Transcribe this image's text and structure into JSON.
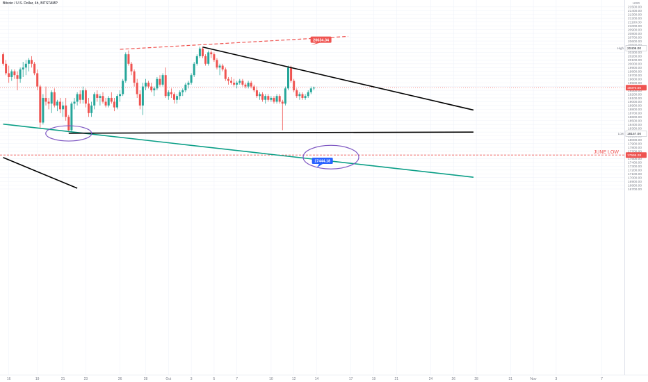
{
  "header": {
    "symbol_title": "Bitcoin / U.S. Dollar, 4h, BITSTAMP",
    "currency": "USD"
  },
  "colors": {
    "up": "#26a69a",
    "down": "#ef5350",
    "price_line": "#ef5350",
    "channel_line": "#0a9e86",
    "trend_line": "#000000",
    "annotation_circle": "#7e57c2",
    "upper_line": "#ef5350",
    "grid": "#f0f3fa",
    "axis_text": "#787b86"
  },
  "chart_data": {
    "type": "candlestick",
    "title": "Bitcoin / U.S. Dollar, 4h, BITSTAMP",
    "y_axis": {
      "ticks": [
        16700,
        16800,
        16900,
        17000,
        17100,
        17200,
        17300,
        17400,
        17500,
        17600,
        17700,
        17800,
        17900,
        18000,
        18100,
        18200,
        18300,
        18400,
        18500,
        18600,
        18700,
        18800,
        18900,
        19000,
        19100,
        19200,
        19300,
        19400,
        19500,
        19600,
        19700,
        19800,
        19900,
        20000,
        20100,
        20200,
        20300,
        20400,
        20500,
        20600,
        20700,
        20800,
        20900,
        21000,
        21100,
        21200,
        21300,
        21400,
        21500
      ],
      "ylim": [
        16620,
        21640
      ],
      "tick_format": "0.00"
    },
    "x_axis": {
      "ticks": [
        {
          "label": "16",
          "slot": 2
        },
        {
          "label": "19",
          "slot": 12
        },
        {
          "label": "21",
          "slot": 21
        },
        {
          "label": "23",
          "slot": 29
        },
        {
          "label": "26",
          "slot": 41
        },
        {
          "label": "28",
          "slot": 50
        },
        {
          "label": "Oct",
          "slot": 58
        },
        {
          "label": "3",
          "slot": 66
        },
        {
          "label": "5",
          "slot": 74
        },
        {
          "label": "7",
          "slot": 82
        },
        {
          "label": "10",
          "slot": 94
        },
        {
          "label": "12",
          "slot": 102
        },
        {
          "label": "14",
          "slot": 110
        },
        {
          "label": "17",
          "slot": 122
        },
        {
          "label": "19",
          "slot": 130
        },
        {
          "label": "21",
          "slot": 138
        },
        {
          "label": "24",
          "slot": 150
        },
        {
          "label": "26",
          "slot": 158
        },
        {
          "label": "28",
          "slot": 166
        },
        {
          "label": "31",
          "slot": 178
        },
        {
          "label": "Nov",
          "slot": 186
        },
        {
          "label": "3",
          "slot": 194
        },
        {
          "label": "7",
          "slot": 210
        }
      ]
    },
    "candles": [
      [
        20250,
        20300,
        19950,
        20000
      ],
      [
        20000,
        20100,
        19700,
        19750
      ],
      [
        19750,
        19950,
        19500,
        19650
      ],
      [
        19650,
        19850,
        19550,
        19800
      ],
      [
        19800,
        19850,
        19600,
        19700
      ],
      [
        19700,
        19800,
        19300,
        19600
      ],
      [
        19600,
        19900,
        19500,
        19850
      ],
      [
        19850,
        20050,
        19650,
        19900
      ],
      [
        19900,
        20100,
        19700,
        20000
      ],
      [
        20000,
        20150,
        19800,
        20100
      ],
      [
        20100,
        20200,
        19900,
        20000
      ],
      [
        20000,
        20050,
        19700,
        19750
      ],
      [
        19750,
        19850,
        19300,
        19400
      ],
      [
        19400,
        19450,
        18300,
        18450
      ],
      [
        18450,
        19200,
        18400,
        19100
      ],
      [
        19100,
        19400,
        18900,
        19000
      ],
      [
        19000,
        19100,
        18800,
        18950
      ],
      [
        18950,
        19300,
        18700,
        19250
      ],
      [
        19250,
        19350,
        18850,
        18900
      ],
      [
        18900,
        19050,
        18750,
        19000
      ],
      [
        19000,
        19100,
        18700,
        18800
      ],
      [
        18800,
        19000,
        18600,
        18900
      ],
      [
        18900,
        19100,
        18500,
        18600
      ],
      [
        18600,
        18650,
        18200,
        18250
      ],
      [
        18250,
        19000,
        18200,
        18950
      ],
      [
        18950,
        19100,
        18800,
        19000
      ],
      [
        19000,
        19250,
        18900,
        19200
      ],
      [
        19200,
        19300,
        18950,
        19050
      ],
      [
        19050,
        19400,
        18950,
        19300
      ],
      [
        19300,
        19350,
        18850,
        18950
      ],
      [
        18950,
        19100,
        18600,
        18700
      ],
      [
        18700,
        19000,
        18600,
        18900
      ],
      [
        18900,
        19250,
        18800,
        19200
      ],
      [
        19200,
        19300,
        19000,
        19100
      ],
      [
        19100,
        19200,
        18900,
        19150
      ],
      [
        19150,
        19250,
        18950,
        19000
      ],
      [
        19000,
        19100,
        18850,
        18900
      ],
      [
        18900,
        19150,
        18850,
        19100
      ],
      [
        19100,
        19250,
        18950,
        19000
      ],
      [
        19000,
        19100,
        18750,
        18850
      ],
      [
        18850,
        19200,
        18800,
        19150
      ],
      [
        19150,
        19300,
        19000,
        19200
      ],
      [
        19200,
        19600,
        19150,
        19550
      ],
      [
        19550,
        20300,
        19500,
        20250
      ],
      [
        20250,
        20350,
        19950,
        20000
      ],
      [
        20000,
        20050,
        19700,
        19800
      ],
      [
        19800,
        19850,
        19400,
        19500
      ],
      [
        19500,
        19600,
        19100,
        19200
      ],
      [
        19200,
        19300,
        18800,
        18900
      ],
      [
        18900,
        19500,
        18650,
        19400
      ],
      [
        19400,
        19600,
        19300,
        19500
      ],
      [
        19500,
        19550,
        19350,
        19400
      ],
      [
        19400,
        19500,
        19250,
        19300
      ],
      [
        19300,
        19400,
        19150,
        19350
      ],
      [
        19350,
        19650,
        19300,
        19600
      ],
      [
        19600,
        19700,
        19400,
        19450
      ],
      [
        19450,
        19750,
        19400,
        19700
      ],
      [
        19700,
        19900,
        19100,
        19150
      ],
      [
        19150,
        19300,
        19050,
        19250
      ],
      [
        19250,
        19350,
        19100,
        19200
      ],
      [
        19200,
        19250,
        18950,
        19050
      ],
      [
        19050,
        19200,
        18950,
        19150
      ],
      [
        19150,
        19300,
        19050,
        19250
      ],
      [
        19250,
        19350,
        19150,
        19300
      ],
      [
        19300,
        19500,
        19250,
        19450
      ],
      [
        19450,
        19550,
        19350,
        19500
      ],
      [
        19500,
        19750,
        19450,
        19700
      ],
      [
        19700,
        20050,
        19650,
        20000
      ],
      [
        20000,
        20250,
        19950,
        20200
      ],
      [
        20200,
        20450,
        20150,
        20400
      ],
      [
        20400,
        20450,
        20150,
        20200
      ],
      [
        20200,
        20250,
        19950,
        20000
      ],
      [
        20000,
        20350,
        19950,
        20300
      ],
      [
        20300,
        20350,
        20150,
        20250
      ],
      [
        20250,
        20300,
        20050,
        20100
      ],
      [
        20100,
        20150,
        19850,
        19900
      ],
      [
        19900,
        20000,
        19700,
        19950
      ],
      [
        19950,
        20000,
        19800,
        19850
      ],
      [
        19850,
        19900,
        19550,
        19600
      ],
      [
        19600,
        19650,
        19450,
        19550
      ],
      [
        19550,
        19650,
        19450,
        19500
      ],
      [
        19500,
        19600,
        19400,
        19450
      ],
      [
        19450,
        19550,
        19350,
        19500
      ],
      [
        19500,
        19600,
        19450,
        19550
      ],
      [
        19550,
        19600,
        19400,
        19450
      ],
      [
        19450,
        19500,
        19350,
        19400
      ],
      [
        19400,
        19550,
        19350,
        19500
      ],
      [
        19500,
        19550,
        19350,
        19400
      ],
      [
        19400,
        19450,
        19250,
        19300
      ],
      [
        19300,
        19400,
        19100,
        19150
      ],
      [
        19150,
        19250,
        19050,
        19200
      ],
      [
        19200,
        19250,
        19000,
        19050
      ],
      [
        19050,
        19200,
        18950,
        19150
      ],
      [
        19150,
        19200,
        19000,
        19050
      ],
      [
        19050,
        19150,
        19000,
        19100
      ],
      [
        19100,
        19150,
        18950,
        19000
      ],
      [
        19000,
        19200,
        18950,
        19150
      ],
      [
        19150,
        19200,
        18950,
        19000
      ],
      [
        19000,
        19050,
        18250,
        18950
      ],
      [
        18950,
        19400,
        18900,
        19350
      ],
      [
        19350,
        19950,
        19300,
        19900
      ],
      [
        19900,
        19950,
        19500,
        19550
      ],
      [
        19550,
        19600,
        19250,
        19300
      ],
      [
        19300,
        19350,
        19100,
        19150
      ],
      [
        19150,
        19250,
        19050,
        19200
      ],
      [
        19200,
        19250,
        19050,
        19100
      ],
      [
        19100,
        19200,
        19050,
        19150
      ],
      [
        19150,
        19300,
        19100,
        19250
      ],
      [
        19250,
        19400,
        19200,
        19350
      ],
      [
        19350,
        19400,
        19300,
        19370
      ]
    ],
    "last_price": 19370,
    "high_label": {
      "text": "High",
      "value": 20409
    },
    "low_label": {
      "text": "Low",
      "value": 18157
    },
    "june_low": {
      "text": "JUNE LOW",
      "value": 17595.28
    },
    "drawings": {
      "upper_dashed": [
        [
          41,
          20380
        ],
        [
          121,
          20720
        ]
      ],
      "triangle_top": [
        [
          70,
          20440
        ],
        [
          165,
          18780
        ]
      ],
      "triangle_bottom": [
        [
          23,
          18170
        ],
        [
          165,
          18200
        ]
      ],
      "green_channel": [
        [
          0,
          18410
        ],
        [
          165,
          17010
        ]
      ],
      "black_diag": [
        [
          0,
          17530
        ],
        [
          26,
          16720
        ]
      ],
      "circle_left": [
        23,
        18165,
        11,
        33
      ],
      "circle_right": [
        115,
        17540,
        17,
        40
      ]
    },
    "callouts": [
      {
        "text": "20634.34",
        "value": 20634.34,
        "slot": 111.5,
        "tip_slot": 108
      },
      {
        "text": "17444.18",
        "value": 17444.18,
        "slot": 112,
        "tip_slot": 110
      }
    ]
  }
}
